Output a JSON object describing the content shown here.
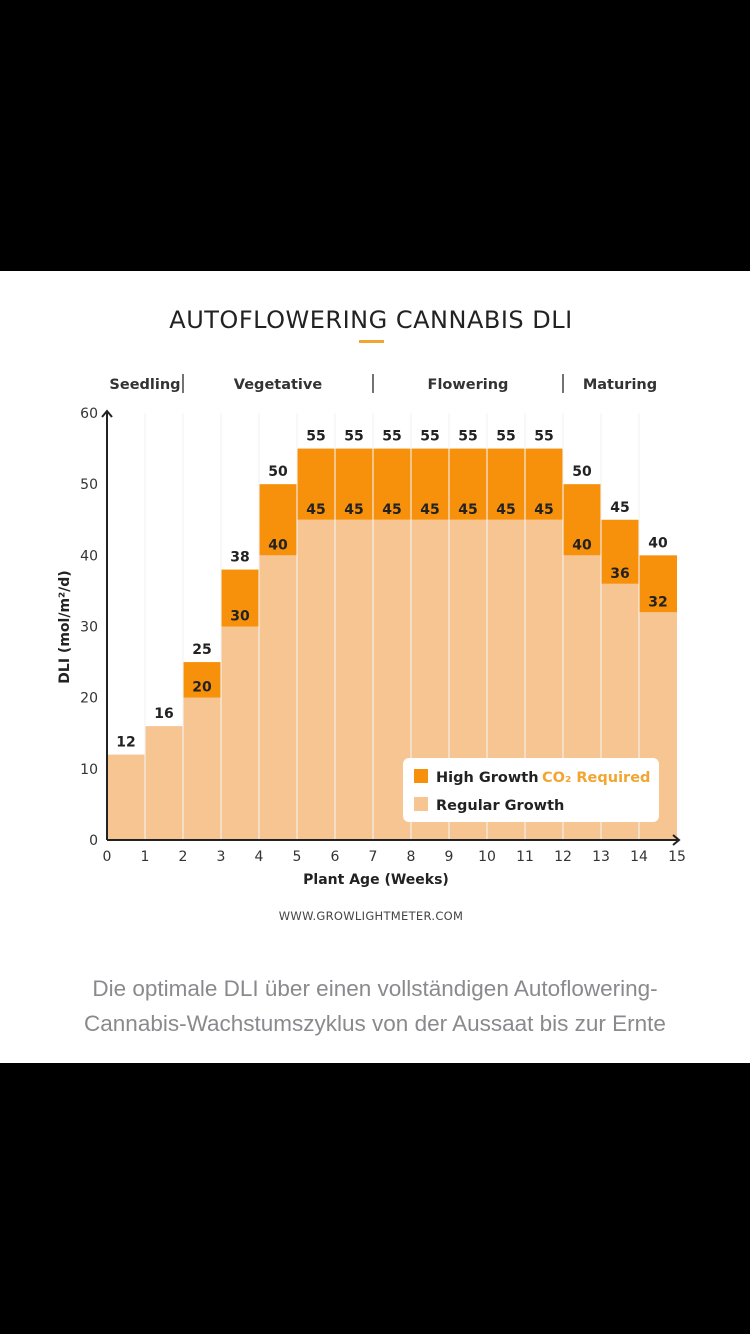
{
  "chart_data": {
    "type": "bar",
    "title": "AUTOFLOWERING CANNABIS DLI",
    "xlabel": "Plant Age (Weeks)",
    "ylabel": "DLI (mol/m²/d)",
    "xlim": [
      0,
      15
    ],
    "ylim": [
      0,
      60
    ],
    "x_ticks": [
      "0",
      "1",
      "2",
      "3",
      "4",
      "5",
      "6",
      "7",
      "8",
      "9",
      "10",
      "11",
      "12",
      "13",
      "14",
      "15"
    ],
    "y_ticks": [
      "0",
      "10",
      "20",
      "30",
      "40",
      "50",
      "60"
    ],
    "grid": "vertical",
    "stacked": true,
    "categories": [
      "0-1",
      "1-2",
      "2-3",
      "3-4",
      "4-5",
      "5-6",
      "6-7",
      "7-8",
      "8-9",
      "9-10",
      "10-11",
      "11-12",
      "12-13",
      "13-14",
      "14-15"
    ],
    "series": [
      {
        "name": "Regular Growth",
        "color": "#f7c592",
        "values": [
          12,
          16,
          20,
          30,
          40,
          45,
          45,
          45,
          45,
          45,
          45,
          45,
          40,
          36,
          32
        ]
      },
      {
        "name": "High Growth",
        "color": "#f7910c",
        "values": [
          12,
          16,
          25,
          38,
          50,
          55,
          55,
          55,
          55,
          55,
          55,
          55,
          50,
          45,
          40
        ]
      }
    ],
    "phases": [
      {
        "label": "Seedling",
        "start": 0,
        "end": 2
      },
      {
        "label": "Vegetative",
        "start": 2,
        "end": 7
      },
      {
        "label": "Flowering",
        "start": 7,
        "end": 12
      },
      {
        "label": "Maturing",
        "start": 12,
        "end": 15
      }
    ],
    "legend": {
      "placement": "bottom-right",
      "items": [
        {
          "label": "High Growth",
          "suffix": "CO₂ Required",
          "suffix_color": "#f2a530",
          "color": "#f7910c"
        },
        {
          "label": "Regular Growth",
          "color": "#f7c592"
        }
      ]
    },
    "source": "WWW.GROWLIGHTMETER.COM",
    "accent_color": "#f2a530"
  },
  "caption": {
    "line1": "Die optimale DLI über einen vollständigen Autoflowering-",
    "line2": "Cannabis-Wachstumszyklus von der Aussaat bis zur Ernte"
  }
}
